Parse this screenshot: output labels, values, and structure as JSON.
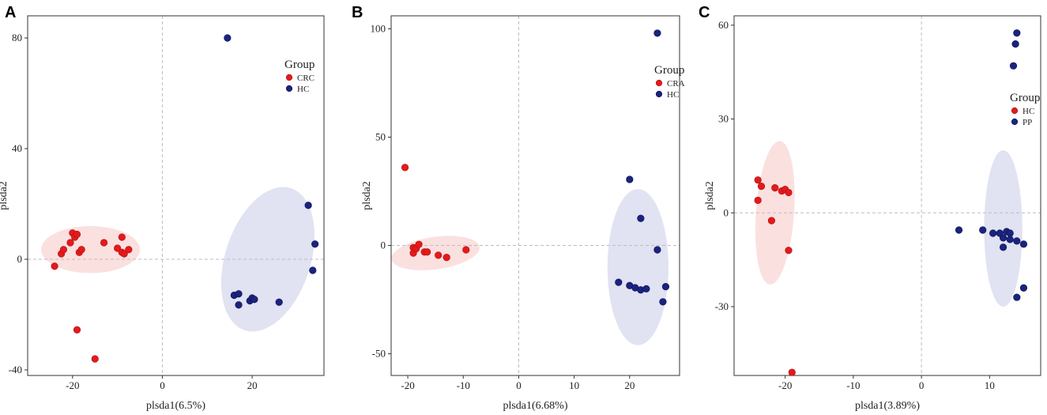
{
  "colors": {
    "red": "#e31a1c",
    "red_stroke": "#b01010",
    "blue": "#1a237e",
    "blue_stroke": "#0d1250",
    "red_ellipse": "#f8c7c7",
    "blue_ellipse": "#c9cbe8"
  },
  "chart_data": [
    {
      "panel": "A",
      "type": "scatter",
      "xlabel": "plsda1(6.5%)",
      "ylabel": "plsda2",
      "xlim": [
        -30,
        36
      ],
      "ylim": [
        -42,
        88
      ],
      "xticks": [
        -20,
        0,
        20
      ],
      "yticks": [
        -40,
        0,
        40,
        80
      ],
      "legend": {
        "title": "Group",
        "position": "top-right"
      },
      "series": [
        {
          "name": "CRC",
          "color": "red",
          "ellipse": {
            "cx": -16,
            "cy": 3.5,
            "rx": 11,
            "ry": 8.5,
            "angle": 0
          },
          "points": [
            [
              -24,
              -2.5
            ],
            [
              -22.5,
              2
            ],
            [
              -22,
              3.5
            ],
            [
              -20.5,
              6
            ],
            [
              -20,
              9.5
            ],
            [
              -19.5,
              8
            ],
            [
              -19,
              9
            ],
            [
              -18.5,
              2.5
            ],
            [
              -18,
              3.5
            ],
            [
              -13,
              6
            ],
            [
              -10,
              4
            ],
            [
              -9,
              2.5
            ],
            [
              -9,
              8
            ],
            [
              -8.5,
              2
            ],
            [
              -7.5,
              3.5
            ],
            [
              -19,
              -25.5
            ],
            [
              -15,
              -36
            ]
          ]
        },
        {
          "name": "HC",
          "color": "blue",
          "ellipse": {
            "cx": 23.5,
            "cy": 0,
            "rx": 9.5,
            "ry": 27,
            "angle": 18
          },
          "points": [
            [
              14.5,
              80
            ],
            [
              32.5,
              19.5
            ],
            [
              34,
              5.5
            ],
            [
              33.5,
              -4
            ],
            [
              16,
              -13
            ],
            [
              17,
              -12.5
            ],
            [
              17,
              -16.5
            ],
            [
              19.5,
              -15
            ],
            [
              20,
              -14
            ],
            [
              20.5,
              -14.5
            ],
            [
              26,
              -15.5
            ]
          ]
        }
      ]
    },
    {
      "panel": "B",
      "type": "scatter",
      "xlabel": "plsda1(6.68%)",
      "ylabel": "plsda2",
      "xlim": [
        -23,
        29
      ],
      "ylim": [
        -60,
        106
      ],
      "xticks": [
        -20,
        -10,
        0,
        10,
        20
      ],
      "yticks": [
        -50,
        0,
        50,
        100
      ],
      "legend": {
        "title": "Group",
        "position": "top-right"
      },
      "series": [
        {
          "name": "CRA",
          "color": "red",
          "ellipse": {
            "cx": -15,
            "cy": -3.5,
            "rx": 8,
            "ry": 7.5,
            "angle": -8
          },
          "points": [
            [
              -20.5,
              36
            ],
            [
              -19,
              -1
            ],
            [
              -19,
              -3.5
            ],
            [
              -18.5,
              -1.5
            ],
            [
              -18,
              0.5
            ],
            [
              -17,
              -3
            ],
            [
              -16.5,
              -3
            ],
            [
              -14.5,
              -4.5
            ],
            [
              -13,
              -5.5
            ],
            [
              -9.5,
              -2
            ]
          ]
        },
        {
          "name": "HC",
          "color": "blue",
          "ellipse": {
            "cx": 21.5,
            "cy": -10,
            "rx": 5.5,
            "ry": 36,
            "angle": 0
          },
          "points": [
            [
              25,
              98
            ],
            [
              20,
              30.5
            ],
            [
              22,
              12.5
            ],
            [
              25,
              -2
            ],
            [
              18,
              -17
            ],
            [
              20,
              -18.5
            ],
            [
              21,
              -19.5
            ],
            [
              22,
              -20.5
            ],
            [
              23,
              -20
            ],
            [
              26.5,
              -19
            ],
            [
              26,
              -26
            ]
          ]
        }
      ]
    },
    {
      "panel": "C",
      "type": "scatter",
      "xlabel": "plsda1(3.89%)",
      "ylabel": "plsda2",
      "xlim": [
        -27.5,
        17.5
      ],
      "ylim": [
        -52,
        63
      ],
      "xticks": [
        -20,
        -10,
        0,
        10
      ],
      "yticks": [
        -30,
        0,
        30,
        60
      ],
      "legend": {
        "title": "Group",
        "position": "right"
      },
      "series": [
        {
          "name": "HC",
          "color": "red",
          "ellipse": {
            "cx": -21.5,
            "cy": 0,
            "rx": 2.8,
            "ry": 23,
            "angle": 4
          },
          "points": [
            [
              -24,
              10.5
            ],
            [
              -23.5,
              8.5
            ],
            [
              -24,
              4
            ],
            [
              -22,
              -2.5
            ],
            [
              -21.5,
              8
            ],
            [
              -20.5,
              7
            ],
            [
              -20,
              7.5
            ],
            [
              -19.5,
              6.5
            ],
            [
              -19.5,
              -12
            ],
            [
              -19,
              -51
            ]
          ]
        },
        {
          "name": "PP",
          "color": "blue",
          "ellipse": {
            "cx": 12,
            "cy": -5,
            "rx": 2.8,
            "ry": 25,
            "angle": 0
          },
          "points": [
            [
              5.5,
              -5.5
            ],
            [
              9,
              -5.5
            ],
            [
              10.5,
              -6.5
            ],
            [
              11.5,
              -6.5
            ],
            [
              12,
              -8
            ],
            [
              12.5,
              -6
            ],
            [
              13,
              -6.5
            ],
            [
              12,
              -11
            ],
            [
              13,
              -8.5
            ],
            [
              14,
              -9
            ],
            [
              15,
              -10
            ],
            [
              15,
              -24
            ],
            [
              14,
              -27
            ],
            [
              14,
              57.5
            ],
            [
              13.8,
              54
            ],
            [
              13.5,
              47
            ]
          ]
        }
      ]
    }
  ]
}
